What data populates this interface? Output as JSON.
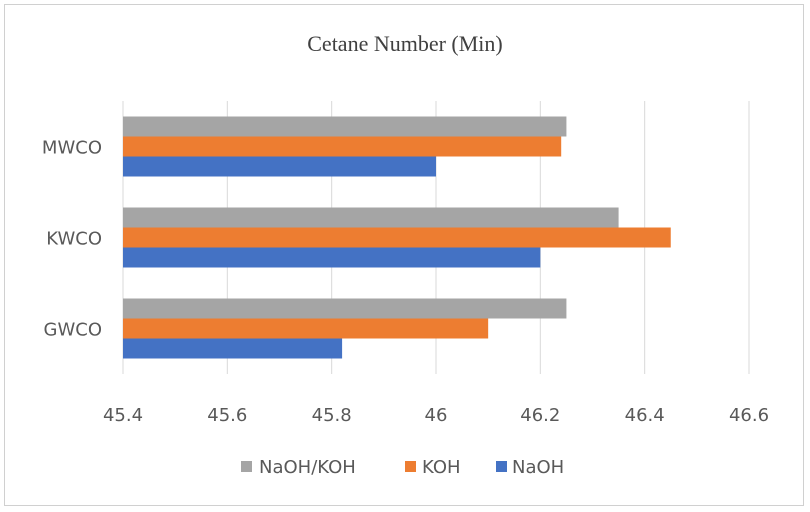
{
  "chart_data": {
    "type": "bar",
    "orientation": "horizontal",
    "title": "Cetane Number (Min)",
    "xlabel": "",
    "ylabel": "",
    "categories": [
      "GWCO",
      "KWCO",
      "MWCO"
    ],
    "series": [
      {
        "name": "NaOH",
        "color": "#4472c4",
        "values": [
          45.82,
          46.2,
          46.0
        ]
      },
      {
        "name": "KOH",
        "color": "#ed7d31",
        "values": [
          46.1,
          46.45,
          46.24
        ]
      },
      {
        "name": "NaOH/KOH",
        "color": "#a5a5a5",
        "values": [
          46.25,
          46.35,
          46.25
        ]
      }
    ],
    "xlim": [
      45.4,
      46.6
    ],
    "xticks": [
      "45.4",
      "45.6",
      "45.8",
      "46",
      "46.2",
      "46.4",
      "46.6"
    ],
    "grid": "vertical",
    "legend": {
      "position": "bottom",
      "order": [
        "NaOH/KOH",
        "KOH",
        "NaOH"
      ]
    }
  }
}
